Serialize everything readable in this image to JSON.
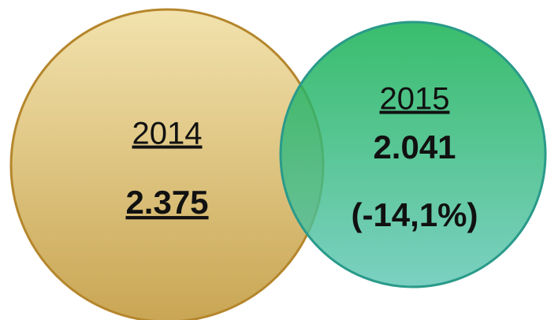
{
  "nodes": [
    {
      "label": "2014",
      "value": "2.375"
    },
    {
      "label": "2015",
      "value": "2.041",
      "change": "(-14,1%)"
    }
  ]
}
